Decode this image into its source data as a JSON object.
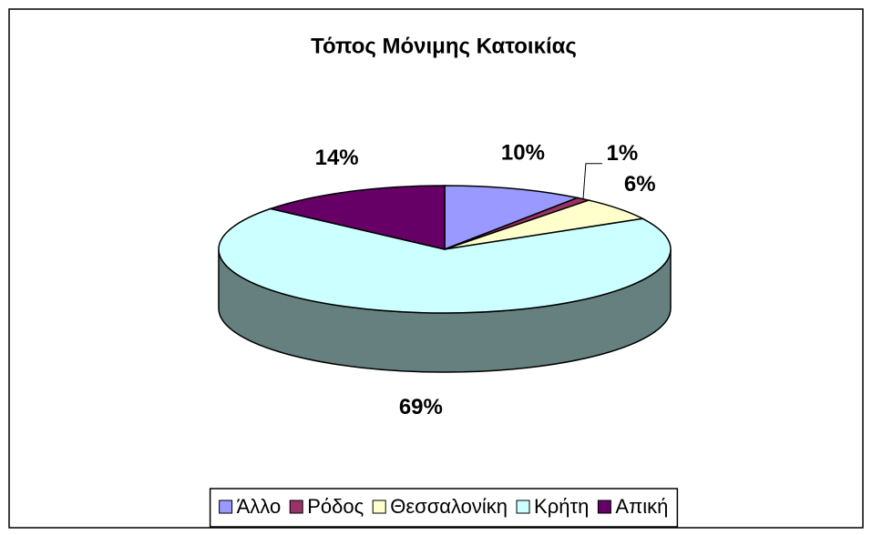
{
  "chart_data": {
    "type": "pie3d",
    "title": "Τόπος Μόνιμης Κατοικίας",
    "categories": [
      "Άλλο",
      "Ρόδος",
      "Θεσσαλονίκη",
      "Κρήτη",
      "Απική"
    ],
    "values": [
      10,
      1,
      6,
      69,
      14
    ],
    "value_labels": [
      "10%",
      "1%",
      "6%",
      "69%",
      "14%"
    ],
    "colors": [
      "#9999ff",
      "#993366",
      "#ffffcc",
      "#ccffff",
      "#660066"
    ],
    "legend": "bottom"
  }
}
